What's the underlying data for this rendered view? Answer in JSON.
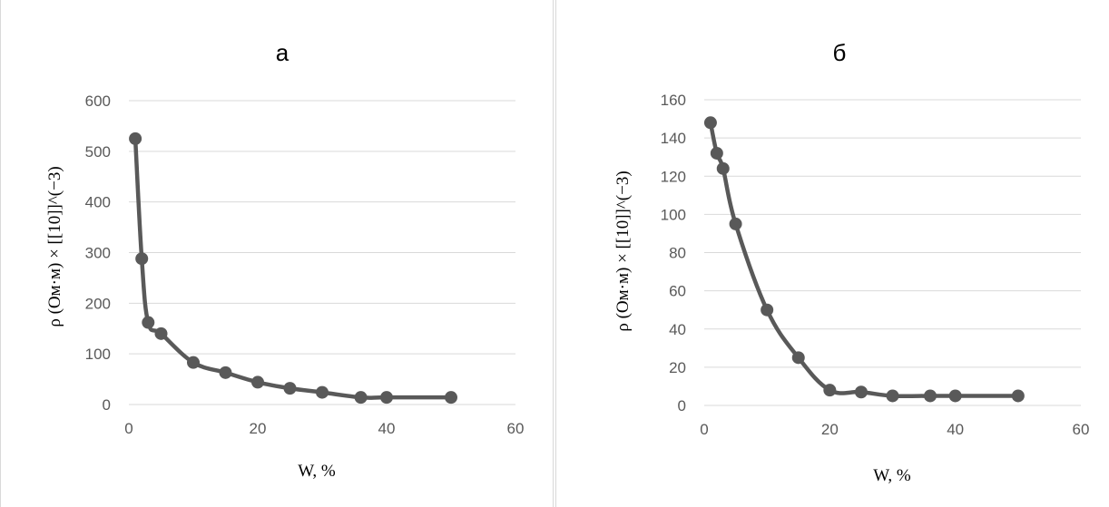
{
  "chart_data": [
    {
      "type": "line",
      "title": "а",
      "xlabel": "W, %",
      "ylabel": "ρ (Ом·м) × [[10]]^(−3)",
      "xlim": [
        0,
        60
      ],
      "ylim": [
        0,
        600
      ],
      "xticks": [
        "0",
        "20",
        "40",
        "60"
      ],
      "yticks": [
        "0",
        "100",
        "200",
        "300",
        "400",
        "500",
        "600"
      ],
      "grid": true,
      "smooth": true,
      "line_color": "#595959",
      "series": [
        {
          "x": [
            1,
            2,
            3,
            5,
            10,
            15,
            20,
            25,
            30,
            36,
            40,
            50
          ],
          "y": [
            525,
            288,
            162,
            140,
            83,
            63,
            44,
            32,
            24,
            14,
            14,
            14
          ]
        }
      ]
    },
    {
      "type": "line",
      "title": "б",
      "xlabel": "W, %",
      "ylabel": "ρ (Ом·м) × [[10]]^(−3)",
      "xlim": [
        0,
        60
      ],
      "ylim": [
        0,
        160
      ],
      "xticks": [
        "0",
        "20",
        "40",
        "60"
      ],
      "yticks": [
        "0",
        "20",
        "40",
        "60",
        "80",
        "100",
        "120",
        "140",
        "160"
      ],
      "grid": true,
      "smooth": true,
      "line_color": "#595959",
      "series": [
        {
          "x": [
            1,
            2,
            3,
            5,
            10,
            15,
            20,
            25,
            30,
            36,
            40,
            50
          ],
          "y": [
            148,
            132,
            124,
            95,
            50,
            25,
            8,
            7,
            5,
            5,
            5,
            5
          ]
        }
      ]
    }
  ]
}
